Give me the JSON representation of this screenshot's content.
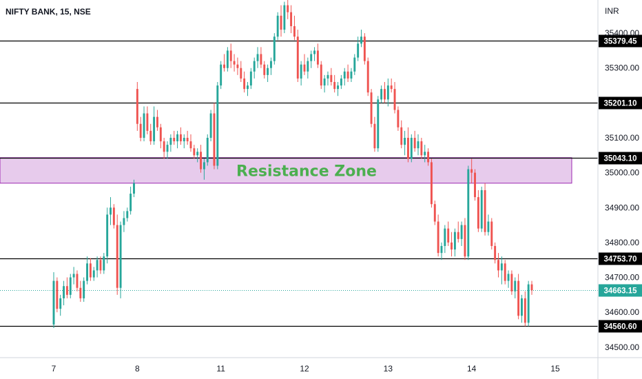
{
  "chart_data": {
    "type": "candlestick",
    "title": "NIFTY BANK, 15, NSE",
    "currency": "INR",
    "ylim": [
      34470,
      35495
    ],
    "y_ticks": [
      34500,
      34600,
      34700,
      34800,
      34900,
      35000,
      35100,
      35300,
      35400
    ],
    "y_tick_labels": [
      "34500.00",
      "34600.00",
      "34700.00",
      "34800.00",
      "34900.00",
      "35000.00",
      "35100.00",
      "35300.00",
      "35400.00"
    ],
    "x_ticks": [
      {
        "bar": 0,
        "label": "7"
      },
      {
        "bar": 25,
        "label": "8"
      },
      {
        "bar": 50,
        "label": "11"
      },
      {
        "bar": 75,
        "label": "12"
      },
      {
        "bar": 100,
        "label": "13"
      },
      {
        "bar": 125,
        "label": "14"
      },
      {
        "bar": 150,
        "label": "15"
      }
    ],
    "bar_count_span": 175,
    "horizontal_levels": [
      {
        "value": 35379.45,
        "label": "35379.45"
      },
      {
        "value": 35201.1,
        "label": "35201.10"
      },
      {
        "value": 35043.1,
        "label": "35043.10"
      },
      {
        "value": 34753.7,
        "label": "34753.70"
      },
      {
        "value": 34560.6,
        "label": "34560.60"
      }
    ],
    "last_price": {
      "value": 34663.15,
      "label": "34663.15"
    },
    "zone": {
      "label": "Resistance Zone",
      "top": 35043.1,
      "bottom": 34970
    },
    "colors": {
      "up": "#26a69a",
      "down": "#ef5350",
      "zone_fill": "#e1bee7",
      "zone_border": "#9c27b0",
      "zone_text": "#4caf50",
      "last_price": "#26a69a"
    },
    "candles": [
      [
        34565,
        34715,
        34555,
        34690
      ],
      [
        34690,
        34700,
        34600,
        34610
      ],
      [
        34610,
        34650,
        34590,
        34640
      ],
      [
        34640,
        34690,
        34620,
        34675
      ],
      [
        34675,
        34700,
        34640,
        34650
      ],
      [
        34650,
        34710,
        34640,
        34700
      ],
      [
        34700,
        34730,
        34680,
        34710
      ],
      [
        34710,
        34720,
        34660,
        34670
      ],
      [
        34670,
        34690,
        34630,
        34640
      ],
      [
        34640,
        34700,
        34630,
        34690
      ],
      [
        34690,
        34760,
        34680,
        34740
      ],
      [
        34740,
        34755,
        34690,
        34700
      ],
      [
        34700,
        34730,
        34690,
        34720
      ],
      [
        34720,
        34760,
        34700,
        34750
      ],
      [
        34750,
        34760,
        34710,
        34720
      ],
      [
        34720,
        34770,
        34710,
        34760
      ],
      [
        34760,
        34900,
        34740,
        34880
      ],
      [
        34880,
        34930,
        34850,
        34900
      ],
      [
        34900,
        34910,
        34840,
        34850
      ],
      [
        34850,
        34880,
        34650,
        34670
      ],
      [
        34670,
        34860,
        34640,
        34850
      ],
      [
        34850,
        34890,
        34830,
        34870
      ],
      [
        34870,
        34900,
        34860,
        34890
      ],
      [
        34890,
        34960,
        34880,
        34940
      ],
      [
        34940,
        34980,
        34930,
        34970
      ],
      [
        35240,
        35260,
        35120,
        35140
      ],
      [
        35140,
        35160,
        35090,
        35100
      ],
      [
        35100,
        35190,
        35090,
        35170
      ],
      [
        35170,
        35190,
        35110,
        35120
      ],
      [
        35120,
        35140,
        35080,
        35090
      ],
      [
        35090,
        35190,
        35080,
        35160
      ],
      [
        35160,
        35180,
        35120,
        35130
      ],
      [
        35130,
        35140,
        35070,
        35090
      ],
      [
        35090,
        35100,
        35040,
        35060
      ],
      [
        35060,
        35090,
        35040,
        35080
      ],
      [
        35080,
        35110,
        35060,
        35100
      ],
      [
        35100,
        35120,
        35080,
        35090
      ],
      [
        35090,
        35120,
        35070,
        35110
      ],
      [
        35110,
        35130,
        35080,
        35090
      ],
      [
        35090,
        35110,
        35070,
        35100
      ],
      [
        35100,
        35120,
        35080,
        35090
      ],
      [
        35090,
        35110,
        35060,
        35070
      ],
      [
        35070,
        35080,
        35040,
        35050
      ],
      [
        35050,
        35070,
        35030,
        35060
      ],
      [
        35060,
        35080,
        35000,
        35010
      ],
      [
        35010,
        35040,
        34980,
        35030
      ],
      [
        35030,
        35110,
        35020,
        35100
      ],
      [
        35100,
        35180,
        35090,
        35170
      ],
      [
        35170,
        35200,
        35010,
        35020
      ],
      [
        35020,
        35260,
        35010,
        35250
      ],
      [
        35250,
        35320,
        35240,
        35310
      ],
      [
        35310,
        35340,
        35290,
        35300
      ],
      [
        35300,
        35360,
        35290,
        35350
      ],
      [
        35350,
        35370,
        35300,
        35320
      ],
      [
        35320,
        35340,
        35290,
        35310
      ],
      [
        35310,
        35330,
        35280,
        35300
      ],
      [
        35300,
        35320,
        35260,
        35270
      ],
      [
        35270,
        35290,
        35230,
        35240
      ],
      [
        35240,
        35260,
        35220,
        35250
      ],
      [
        35250,
        35300,
        35240,
        35290
      ],
      [
        35290,
        35330,
        35270,
        35320
      ],
      [
        35320,
        35360,
        35300,
        35340
      ],
      [
        35340,
        35360,
        35300,
        35310
      ],
      [
        35310,
        35320,
        35270,
        35280
      ],
      [
        35280,
        35310,
        35260,
        35300
      ],
      [
        35300,
        35330,
        35280,
        35320
      ],
      [
        35320,
        35400,
        35310,
        35390
      ],
      [
        35390,
        35460,
        35380,
        35450
      ],
      [
        35450,
        35480,
        35390,
        35410
      ],
      [
        35410,
        35490,
        35400,
        35480
      ],
      [
        35480,
        35500,
        35440,
        35460
      ],
      [
        35460,
        35480,
        35400,
        35420
      ],
      [
        35420,
        35450,
        35380,
        35390
      ],
      [
        35390,
        35410,
        35260,
        35270
      ],
      [
        35270,
        35320,
        35250,
        35310
      ],
      [
        35310,
        35340,
        35280,
        35290
      ],
      [
        35290,
        35330,
        35270,
        35320
      ],
      [
        35320,
        35350,
        35300,
        35340
      ],
      [
        35340,
        35360,
        35320,
        35350
      ],
      [
        35350,
        35370,
        35300,
        35310
      ],
      [
        35310,
        35320,
        35240,
        35250
      ],
      [
        35250,
        35280,
        35230,
        35270
      ],
      [
        35270,
        35290,
        35250,
        35280
      ],
      [
        35280,
        35300,
        35250,
        35260
      ],
      [
        35260,
        35280,
        35230,
        35240
      ],
      [
        35240,
        35260,
        35220,
        35250
      ],
      [
        35250,
        35280,
        35240,
        35270
      ],
      [
        35270,
        35300,
        35250,
        35290
      ],
      [
        35290,
        35310,
        35260,
        35270
      ],
      [
        35270,
        35300,
        35260,
        35290
      ],
      [
        35290,
        35340,
        35280,
        35330
      ],
      [
        35330,
        35390,
        35320,
        35370
      ],
      [
        35370,
        35410,
        35360,
        35390
      ],
      [
        35390,
        35400,
        35310,
        35320
      ],
      [
        35320,
        35330,
        35220,
        35230
      ],
      [
        35230,
        35240,
        35130,
        35140
      ],
      [
        35140,
        35160,
        35060,
        35070
      ],
      [
        35070,
        35220,
        35060,
        35210
      ],
      [
        35210,
        35250,
        35200,
        35240
      ],
      [
        35240,
        35260,
        35200,
        35210
      ],
      [
        35210,
        35270,
        35190,
        35250
      ],
      [
        35250,
        35270,
        35230,
        35240
      ],
      [
        35240,
        35260,
        35170,
        35180
      ],
      [
        35180,
        35190,
        35120,
        35130
      ],
      [
        35130,
        35150,
        35070,
        35080
      ],
      [
        35080,
        35120,
        35050,
        35100
      ],
      [
        35100,
        35130,
        35030,
        35040
      ],
      [
        35040,
        35110,
        35030,
        35100
      ],
      [
        35100,
        35120,
        35060,
        35070
      ],
      [
        35070,
        35110,
        35050,
        35090
      ],
      [
        35090,
        35100,
        35040,
        35050
      ],
      [
        35050,
        35080,
        35030,
        35060
      ],
      [
        35060,
        35070,
        35020,
        35030
      ],
      [
        35030,
        35040,
        34900,
        34910
      ],
      [
        34910,
        34920,
        34850,
        34860
      ],
      [
        34860,
        34880,
        34760,
        34770
      ],
      [
        34770,
        34800,
        34750,
        34790
      ],
      [
        34790,
        34850,
        34770,
        34840
      ],
      [
        34840,
        34860,
        34790,
        34800
      ],
      [
        34800,
        34830,
        34760,
        34780
      ],
      [
        34780,
        34840,
        34760,
        34830
      ],
      [
        34830,
        34860,
        34800,
        34810
      ],
      [
        34810,
        34860,
        34790,
        34850
      ],
      [
        34850,
        34870,
        34750,
        34760
      ],
      [
        34760,
        35020,
        34750,
        35010
      ],
      [
        35010,
        35040,
        34970,
        35000
      ],
      [
        35000,
        35010,
        34920,
        34930
      ],
      [
        34930,
        34950,
        34830,
        34840
      ],
      [
        34840,
        34960,
        34830,
        34950
      ],
      [
        34950,
        34970,
        34820,
        34830
      ],
      [
        34830,
        34880,
        34820,
        34860
      ],
      [
        34860,
        34870,
        34780,
        34790
      ],
      [
        34790,
        34800,
        34740,
        34750
      ],
      [
        34750,
        34770,
        34700,
        34720
      ],
      [
        34720,
        34760,
        34680,
        34740
      ],
      [
        34740,
        34750,
        34680,
        34690
      ],
      [
        34690,
        34720,
        34670,
        34710
      ],
      [
        34710,
        34720,
        34650,
        34660
      ],
      [
        34660,
        34700,
        34640,
        34690
      ],
      [
        34690,
        34710,
        34580,
        34590
      ],
      [
        34590,
        34650,
        34570,
        34640
      ],
      [
        34640,
        34660,
        34560,
        34570
      ],
      [
        34570,
        34690,
        34560,
        34680
      ],
      [
        34680,
        34690,
        34650,
        34663
      ]
    ]
  }
}
